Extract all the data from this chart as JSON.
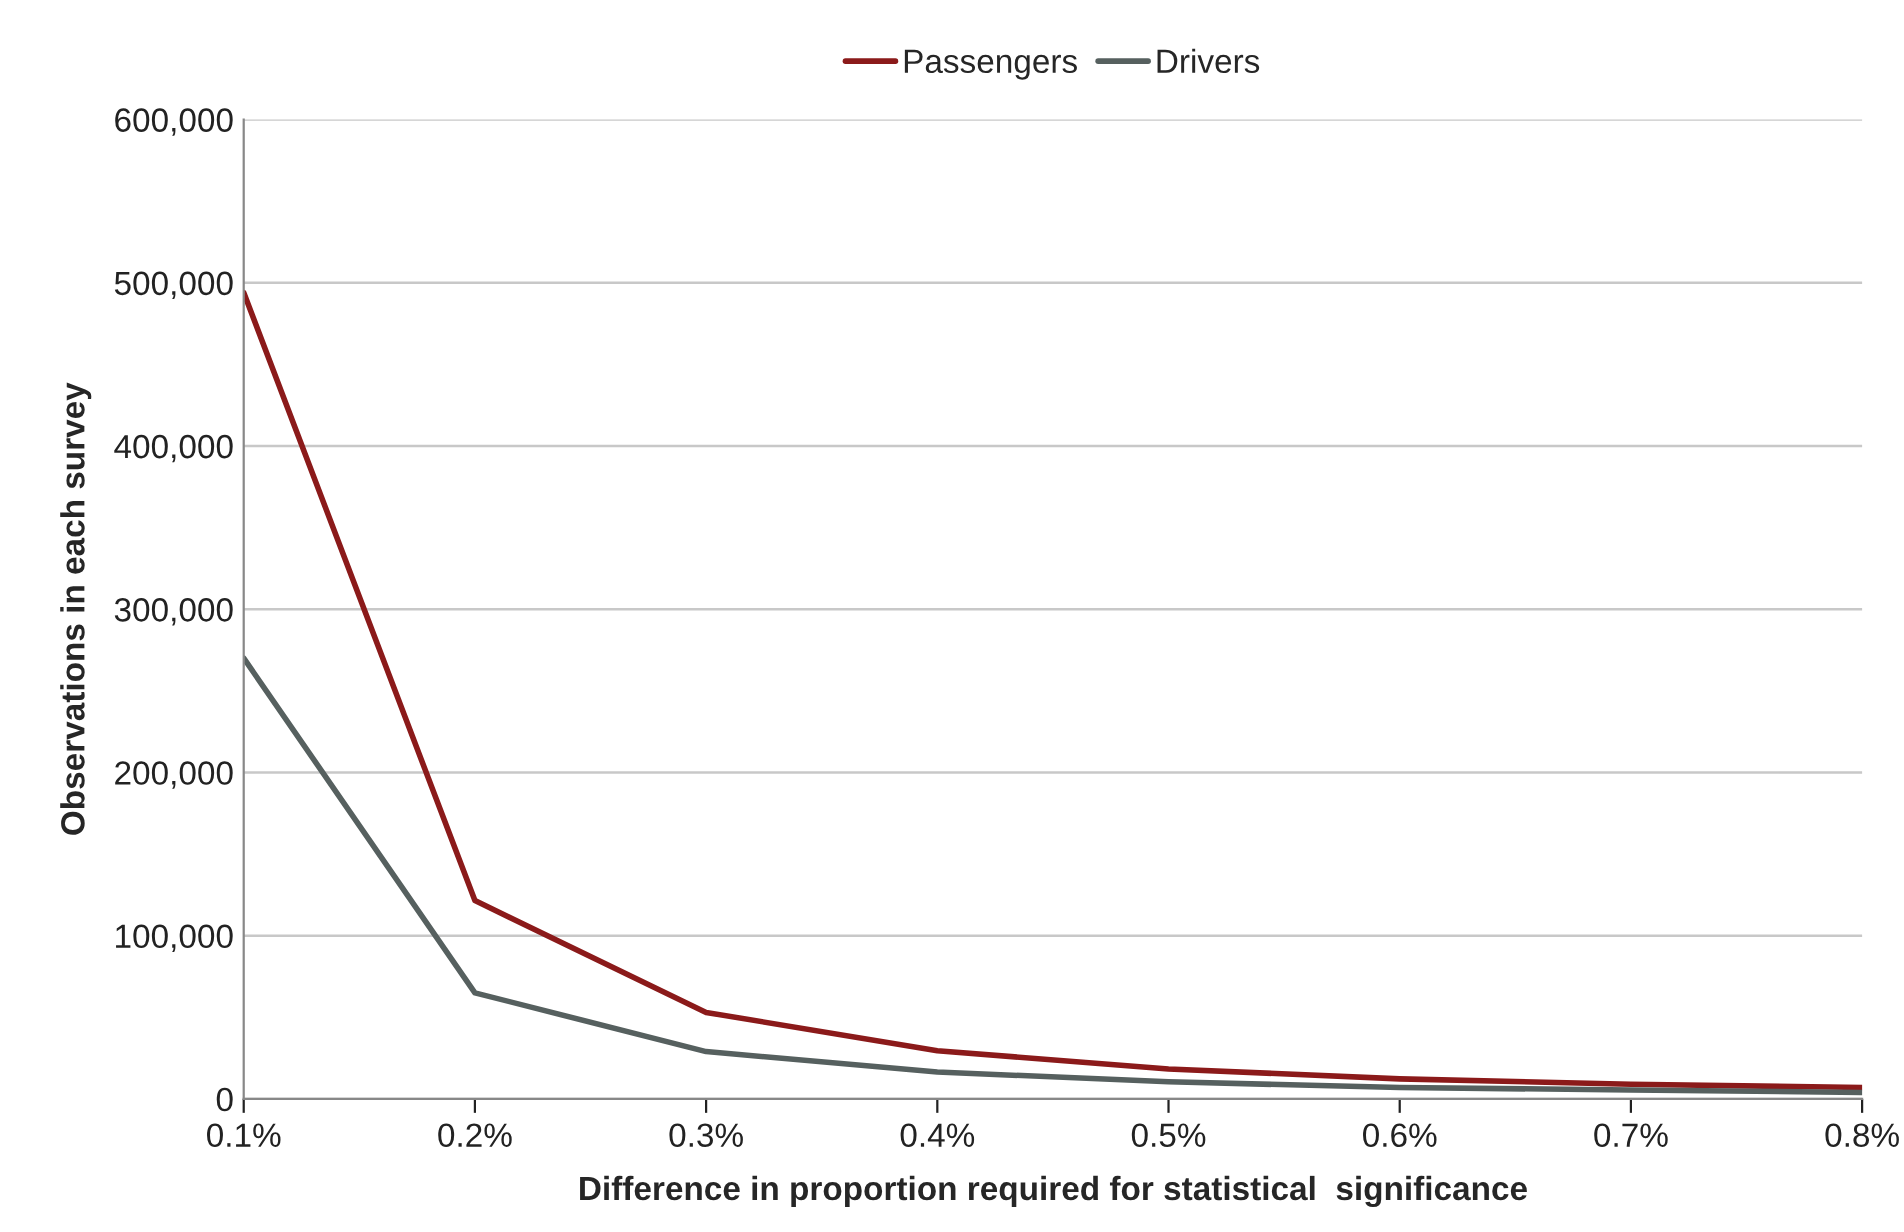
{
  "chart_data": {
    "type": "line",
    "xlabel": "Difference in proportion required for statistical  significance",
    "ylabel": "Observations in each survey",
    "categories": [
      "0.1%",
      "0.2%",
      "0.3%",
      "0.4%",
      "0.5%",
      "0.6%",
      "0.7%",
      "0.8%"
    ],
    "series": [
      {
        "name": "Passengers",
        "color": "#8b1a1a",
        "values": [
          494000,
          121500,
          53000,
          29500,
          18400,
          12300,
          9000,
          7000
        ]
      },
      {
        "name": "Drivers",
        "color": "#56605f",
        "values": [
          270000,
          65000,
          29000,
          16500,
          10500,
          7000,
          5500,
          4000
        ]
      }
    ],
    "ylim": [
      0,
      600000
    ],
    "yticks": [
      {
        "value": 0,
        "label": "0"
      },
      {
        "value": 100000,
        "label": "100,000"
      },
      {
        "value": 200000,
        "label": "200,000"
      },
      {
        "value": 300000,
        "label": "300,000"
      },
      {
        "value": 400000,
        "label": "400,000"
      },
      {
        "value": 500000,
        "label": "500,000"
      },
      {
        "value": 600000,
        "label": "600,000"
      }
    ],
    "grid": "y",
    "legend": "top",
    "marker": "none",
    "line_style": "solid"
  }
}
